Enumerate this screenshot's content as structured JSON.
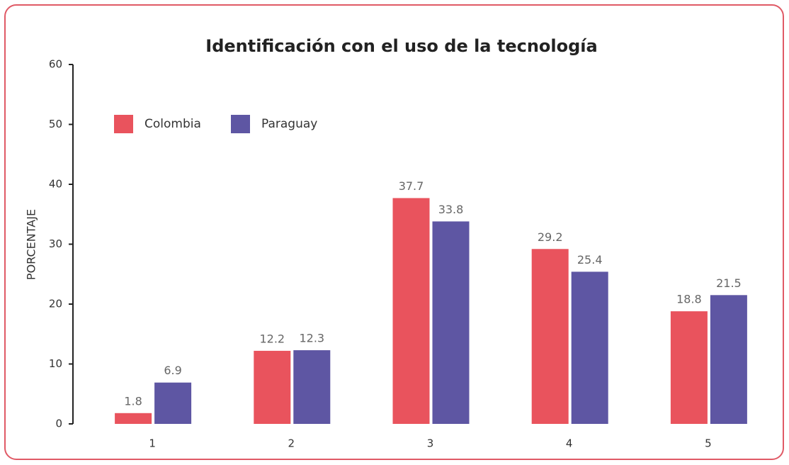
{
  "chart_data": {
    "type": "bar",
    "title": "Identificación con el uso de la tecnología",
    "y_label": "PORCENTAJE",
    "categories": [
      "1",
      "2",
      "3",
      "4",
      "5"
    ],
    "series": [
      {
        "name": "Colombia",
        "color": "#e9535d",
        "values": [
          1.8,
          12.2,
          37.7,
          29.2,
          18.8
        ]
      },
      {
        "name": "Paraguay",
        "color": "#5e56a3",
        "values": [
          6.9,
          12.3,
          33.8,
          25.4,
          21.5
        ]
      }
    ],
    "ylim": [
      0,
      60
    ],
    "yticks": [
      0,
      10,
      20,
      30,
      40,
      50,
      60
    ],
    "legend": "top-left"
  }
}
